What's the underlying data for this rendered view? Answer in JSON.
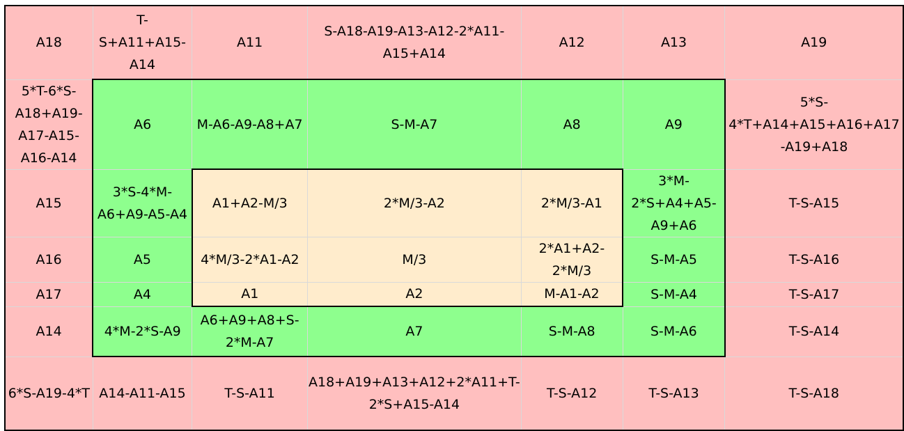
{
  "colors": {
    "outer": "#ffbfbf",
    "middle": "#8eff8e",
    "inner": "#ffeccc",
    "border": "#000000",
    "gridline": "#d9d9d9"
  },
  "rows": [
    [
      {
        "text": "A18",
        "color": "pink"
      },
      {
        "text": "T-S+A11+A15-A14",
        "color": "pink"
      },
      {
        "text": "A11",
        "color": "pink"
      },
      {
        "text": "S-A18-A19-A13-A12-2*A11-A15+A14",
        "color": "pink"
      },
      {
        "text": "A12",
        "color": "pink"
      },
      {
        "text": "A13",
        "color": "pink"
      },
      {
        "text": "A19",
        "color": "pink"
      }
    ],
    [
      {
        "text": "5*T-6*S-A18+A19-A17-A15-A16-A14",
        "color": "pink"
      },
      {
        "text": "A6",
        "color": "green"
      },
      {
        "text": "M-A6-A9-A8+A7",
        "color": "green"
      },
      {
        "text": "S-M-A7",
        "color": "green"
      },
      {
        "text": "A8",
        "color": "green"
      },
      {
        "text": "A9",
        "color": "green"
      },
      {
        "text": "5*S-4*T+A14+A15+A16+A17-A19+A18",
        "color": "pink"
      }
    ],
    [
      {
        "text": "A15",
        "color": "pink"
      },
      {
        "text": "3*S-4*M-A6+A9-A5-A4",
        "color": "green"
      },
      {
        "text": "A1+A2-M/3",
        "color": "yellow"
      },
      {
        "text": "2*M/3-A2",
        "color": "yellow"
      },
      {
        "text": "2*M/3-A1",
        "color": "yellow"
      },
      {
        "text": "3*M-2*S+A4+A5-A9+A6",
        "color": "green"
      },
      {
        "text": "T-S-A15",
        "color": "pink"
      }
    ],
    [
      {
        "text": "A16",
        "color": "pink"
      },
      {
        "text": "A5",
        "color": "green"
      },
      {
        "text": "4*M/3-2*A1-A2",
        "color": "yellow"
      },
      {
        "text": "M/3",
        "color": "yellow"
      },
      {
        "text": "2*A1+A2-2*M/3",
        "color": "yellow"
      },
      {
        "text": "S-M-A5",
        "color": "green"
      },
      {
        "text": "T-S-A16",
        "color": "pink"
      }
    ],
    [
      {
        "text": "A17",
        "color": "pink"
      },
      {
        "text": "A4",
        "color": "green"
      },
      {
        "text": "A1",
        "color": "yellow"
      },
      {
        "text": "A2",
        "color": "yellow"
      },
      {
        "text": "M-A1-A2",
        "color": "yellow"
      },
      {
        "text": "S-M-A4",
        "color": "green"
      },
      {
        "text": "T-S-A17",
        "color": "pink"
      }
    ],
    [
      {
        "text": "A14",
        "color": "pink"
      },
      {
        "text": "4*M-2*S-A9",
        "color": "green"
      },
      {
        "text": "A6+A9+A8+S-2*M-A7",
        "color": "green"
      },
      {
        "text": "A7",
        "color": "green"
      },
      {
        "text": "S-M-A8",
        "color": "green"
      },
      {
        "text": "S-M-A6",
        "color": "green"
      },
      {
        "text": "T-S-A14",
        "color": "pink"
      }
    ],
    [
      {
        "text": "6*S-A19-4*T",
        "color": "pink"
      },
      {
        "text": "A14-A11-A15",
        "color": "pink"
      },
      {
        "text": "T-S-A11",
        "color": "pink"
      },
      {
        "text": "A18+A19+A13+A12+2*A11+T-2*S+A15-A14",
        "color": "pink"
      },
      {
        "text": "T-S-A12",
        "color": "pink"
      },
      {
        "text": "T-S-A13",
        "color": "pink"
      },
      {
        "text": "T-S-A18",
        "color": "pink"
      }
    ]
  ]
}
